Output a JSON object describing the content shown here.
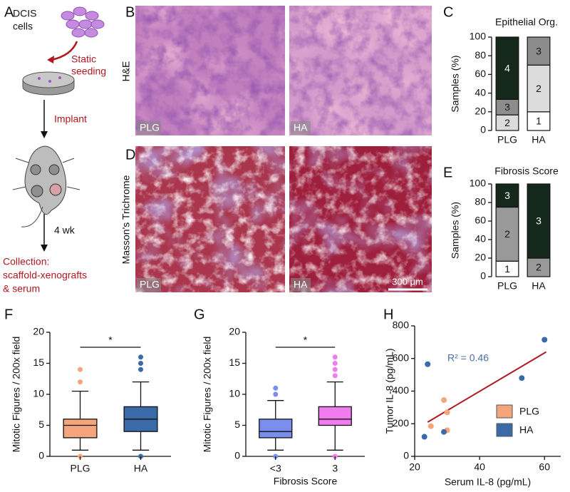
{
  "panel_labels": [
    "A",
    "B",
    "C",
    "D",
    "E",
    "F",
    "G",
    "H"
  ],
  "schematic": {
    "cells_label": [
      "DCIS",
      "cells"
    ],
    "seeding_label": [
      "Static",
      "seeding"
    ],
    "implant": "Implant",
    "duration": "4 wk",
    "collection_label": [
      "Collection:",
      "scaffold-xenografts",
      "& serum"
    ]
  },
  "images": {
    "row_labels": [
      "H&E",
      "Masson's Trichrome"
    ],
    "column_tags": [
      "PLG",
      "HA"
    ],
    "scale_bar": "300 μm"
  },
  "chart_data": [
    {
      "type": "stacked-bar",
      "title": "Epithelial Org.",
      "y_label": "Samples (%)",
      "categories": [
        "PLG",
        "HA"
      ],
      "series": [
        {
          "name": "1",
          "color": "#ffffff",
          "values": [
            0,
            20
          ]
        },
        {
          "name": "2",
          "color": "#dcdcdc",
          "values": [
            16.7,
            50
          ]
        },
        {
          "name": "3",
          "color": "#8c8c8c",
          "values": [
            16.7,
            30
          ]
        },
        {
          "name": "4",
          "color": "#14281c",
          "values": [
            66.6,
            0
          ]
        }
      ],
      "ylim": [
        0,
        100
      ],
      "yticks": [
        0,
        20,
        40,
        60,
        80,
        100
      ]
    },
    {
      "type": "stacked-bar",
      "title": "Fibrosis Score",
      "y_label": "Samples (%)",
      "categories": [
        "PLG",
        "HA"
      ],
      "series": [
        {
          "name": "1",
          "color": "#ffffff",
          "values": [
            16.7,
            0
          ]
        },
        {
          "name": "2",
          "color": "#999999",
          "values": [
            58.3,
            20
          ]
        },
        {
          "name": "3",
          "color": "#14281c",
          "values": [
            25,
            80
          ]
        }
      ],
      "ylim": [
        0,
        100
      ],
      "yticks": [
        0,
        20,
        40,
        60,
        80,
        100
      ]
    },
    {
      "type": "box",
      "y_label": "Mitotic Figures / 200x field",
      "categories": [
        "PLG",
        "HA"
      ],
      "colors": [
        "#f4a57c",
        "#3a6aa8"
      ],
      "whisker_low": [
        1,
        1
      ],
      "q1": [
        3,
        4
      ],
      "median": [
        5,
        6
      ],
      "q3": [
        6,
        8
      ],
      "whisker_high": [
        10.5,
        12
      ],
      "outliers": [
        [
          0,
          12,
          14
        ],
        [
          0,
          14,
          15,
          16
        ]
      ],
      "ylim": [
        0,
        20
      ],
      "yticks": [
        0,
        5,
        10,
        15,
        20
      ],
      "significance": "*"
    },
    {
      "type": "box",
      "y_label": "Mitotic Figures / 200x field",
      "x_label": "Fibrosis Score",
      "categories": [
        "<3",
        "3"
      ],
      "colors": [
        "#7b8ef0",
        "#f07cf0"
      ],
      "whisker_low": [
        1,
        1
      ],
      "q1": [
        3,
        5
      ],
      "median": [
        4,
        6
      ],
      "q3": [
        6,
        8
      ],
      "whisker_high": [
        9,
        12
      ],
      "outliers": [
        [
          0,
          10,
          11
        ],
        [
          0,
          13,
          14,
          15,
          16
        ]
      ],
      "ylim": [
        0,
        20
      ],
      "yticks": [
        0,
        5,
        10,
        15,
        20
      ],
      "significance": "*"
    },
    {
      "type": "scatter",
      "x_label": "Serum IL-8 (pg/mL)",
      "y_label": "Tumor IL-8 (pg/mL)",
      "annotation": "R² = 0.46",
      "series": [
        {
          "name": "PLG",
          "color": "#f4a57c",
          "x": [
            25,
            29,
            30,
            30
          ],
          "y": [
            185,
            345,
            270,
            160
          ]
        },
        {
          "name": "HA",
          "color": "#3a6aa8",
          "x": [
            23,
            24,
            29,
            53,
            60
          ],
          "y": [
            120,
            565,
            150,
            480,
            715
          ]
        }
      ],
      "fit": {
        "color": "#b0171f",
        "x": [
          24,
          60.5
        ],
        "y": [
          210,
          640
        ]
      },
      "xlim": [
        20,
        65
      ],
      "xticks": [
        20,
        40,
        60
      ],
      "ylim": [
        0,
        800
      ],
      "yticks": [
        0,
        200,
        400,
        600,
        800
      ],
      "legend": "lower right"
    }
  ]
}
